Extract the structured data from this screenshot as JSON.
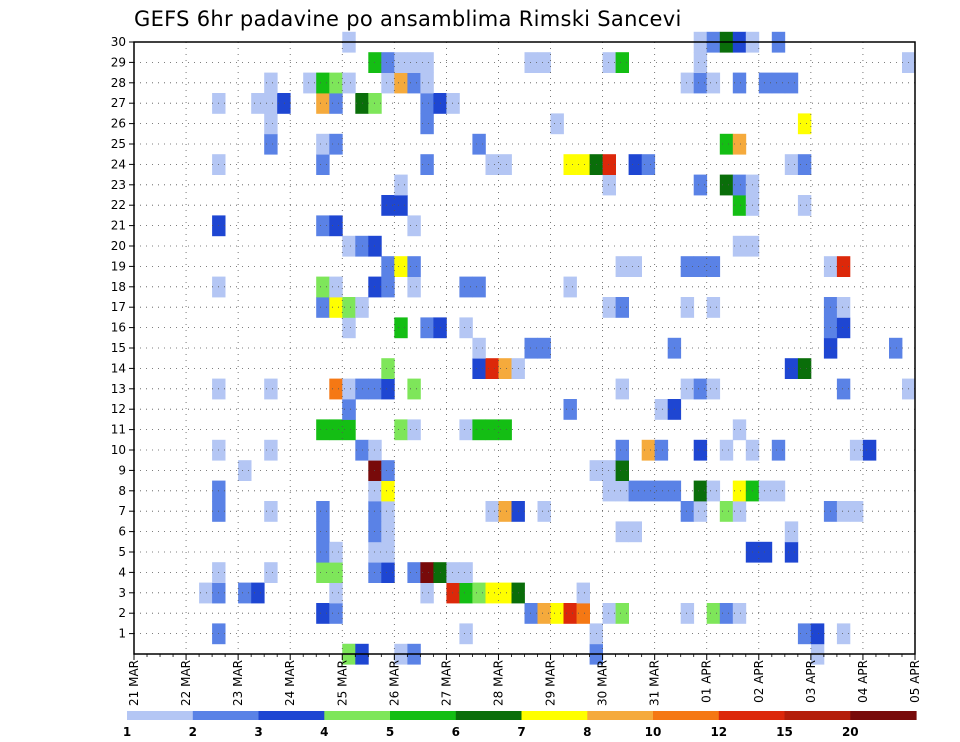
{
  "chart_data": {
    "type": "heatmap",
    "title": "GEFS 6hr padavine po ansamblima Rimski Sancevi",
    "xlabel": "",
    "ylabel": "",
    "grid": true,
    "x_tick_labels": [
      "21 MAR",
      "22 MAR",
      "23 MAR",
      "24 MAR",
      "25 MAR",
      "26 MAR",
      "27 MAR",
      "28 MAR",
      "29 MAR",
      "30 MAR",
      "31 MAR",
      "01 APR",
      "02 APR",
      "03 APR",
      "04 APR",
      "05 APR"
    ],
    "y_tick_labels": [
      "1",
      "2",
      "3",
      "4",
      "5",
      "6",
      "7",
      "8",
      "9",
      "10",
      "11",
      "12",
      "13",
      "14",
      "15",
      "16",
      "17",
      "18",
      "19",
      "20",
      "21",
      "22",
      "23",
      "24",
      "25",
      "26",
      "27",
      "28",
      "29",
      "30"
    ],
    "x_range_steps": [
      0,
      60
    ],
    "y_range_members": [
      0,
      30
    ],
    "legend": {
      "placement": "bottom",
      "tick_labels": [
        "1",
        "2",
        "3",
        "4",
        "5",
        "6",
        "7",
        "8",
        "10",
        "12",
        "15",
        "20"
      ],
      "colors": [
        "#b4c6f4",
        "#5a82e6",
        "#1e46d2",
        "#7ee65a",
        "#14be14",
        "#0a6e0a",
        "#ffff00",
        "#f5aa3c",
        "#f57814",
        "#dc280a",
        "#b41e0a",
        "#780a0a"
      ]
    },
    "colors": [
      "#b4c6f4",
      "#5a82e6",
      "#1e46d2",
      "#7ee65a",
      "#14be14",
      "#0a6e0a",
      "#ffff00",
      "#f5aa3c",
      "#f57814",
      "#dc280a",
      "#b41e0a",
      "#780a0a"
    ],
    "cells_format": "[step (6h steps after 21 MAR 00Z), ensemble member, color level index (0 = 1-2 mm ... 11 = >20 mm)]",
    "cells": [
      [
        16,
        0,
        0
      ],
      [
        16,
        0,
        3
      ],
      [
        17,
        0,
        2
      ],
      [
        20,
        0,
        0
      ],
      [
        21,
        0,
        1
      ],
      [
        35,
        0,
        1
      ],
      [
        52,
        0,
        0
      ],
      [
        6,
        1,
        1
      ],
      [
        25,
        1,
        0
      ],
      [
        35,
        1,
        0
      ],
      [
        51,
        1,
        1
      ],
      [
        52,
        1,
        2
      ],
      [
        54,
        1,
        0
      ],
      [
        14,
        2,
        2
      ],
      [
        15,
        2,
        1
      ],
      [
        30,
        2,
        1
      ],
      [
        31,
        2,
        7
      ],
      [
        32,
        2,
        6
      ],
      [
        33,
        2,
        9
      ],
      [
        34,
        2,
        8
      ],
      [
        36,
        2,
        0
      ],
      [
        37,
        2,
        3
      ],
      [
        42,
        2,
        0
      ],
      [
        44,
        2,
        3
      ],
      [
        45,
        2,
        1
      ],
      [
        46,
        2,
        0
      ],
      [
        5,
        3,
        0
      ],
      [
        6,
        3,
        0
      ],
      [
        6,
        3,
        1
      ],
      [
        8,
        3,
        1
      ],
      [
        9,
        3,
        2
      ],
      [
        15,
        3,
        0
      ],
      [
        22,
        3,
        0
      ],
      [
        24,
        3,
        9
      ],
      [
        25,
        3,
        4
      ],
      [
        26,
        3,
        3
      ],
      [
        27,
        3,
        6
      ],
      [
        28,
        3,
        6
      ],
      [
        29,
        3,
        5
      ],
      [
        34,
        3,
        0
      ],
      [
        6,
        4,
        0
      ],
      [
        10,
        4,
        0
      ],
      [
        14,
        4,
        3
      ],
      [
        15,
        4,
        3
      ],
      [
        18,
        4,
        1
      ],
      [
        19,
        4,
        2
      ],
      [
        21,
        4,
        1
      ],
      [
        22,
        4,
        11
      ],
      [
        23,
        4,
        5
      ],
      [
        24,
        4,
        0
      ],
      [
        25,
        4,
        0
      ],
      [
        14,
        5,
        1
      ],
      [
        15,
        5,
        0
      ],
      [
        18,
        5,
        0
      ],
      [
        19,
        5,
        0
      ],
      [
        47,
        5,
        2
      ],
      [
        48,
        5,
        2
      ],
      [
        50,
        5,
        2
      ],
      [
        14,
        6,
        1
      ],
      [
        18,
        6,
        1
      ],
      [
        19,
        6,
        0
      ],
      [
        37,
        6,
        0
      ],
      [
        38,
        6,
        0
      ],
      [
        50,
        6,
        0
      ],
      [
        6,
        7,
        1
      ],
      [
        10,
        7,
        0
      ],
      [
        14,
        7,
        1
      ],
      [
        18,
        7,
        1
      ],
      [
        19,
        7,
        0
      ],
      [
        27,
        7,
        0
      ],
      [
        28,
        7,
        7
      ],
      [
        29,
        7,
        2
      ],
      [
        31,
        7,
        0
      ],
      [
        42,
        7,
        1
      ],
      [
        43,
        7,
        0
      ],
      [
        45,
        7,
        3
      ],
      [
        46,
        7,
        0
      ],
      [
        53,
        7,
        1
      ],
      [
        54,
        7,
        0
      ],
      [
        55,
        7,
        0
      ],
      [
        6,
        8,
        1
      ],
      [
        18,
        8,
        0
      ],
      [
        19,
        8,
        6
      ],
      [
        36,
        8,
        0
      ],
      [
        37,
        8,
        0
      ],
      [
        38,
        8,
        1
      ],
      [
        39,
        8,
        1
      ],
      [
        40,
        8,
        1
      ],
      [
        41,
        8,
        1
      ],
      [
        43,
        8,
        5
      ],
      [
        44,
        8,
        0
      ],
      [
        46,
        8,
        6
      ],
      [
        47,
        8,
        4
      ],
      [
        48,
        8,
        0
      ],
      [
        49,
        8,
        0
      ],
      [
        8,
        9,
        0
      ],
      [
        18,
        9,
        11
      ],
      [
        19,
        9,
        1
      ],
      [
        35,
        9,
        0
      ],
      [
        36,
        9,
        0
      ],
      [
        37,
        9,
        5
      ],
      [
        6,
        10,
        0
      ],
      [
        10,
        10,
        0
      ],
      [
        17,
        10,
        1
      ],
      [
        18,
        10,
        0
      ],
      [
        37,
        10,
        1
      ],
      [
        39,
        10,
        7
      ],
      [
        40,
        10,
        1
      ],
      [
        43,
        10,
        2
      ],
      [
        45,
        10,
        0
      ],
      [
        47,
        10,
        0
      ],
      [
        49,
        10,
        1
      ],
      [
        55,
        10,
        0
      ],
      [
        56,
        10,
        2
      ],
      [
        14,
        11,
        4
      ],
      [
        15,
        11,
        4
      ],
      [
        16,
        11,
        4
      ],
      [
        20,
        11,
        3
      ],
      [
        21,
        11,
        0
      ],
      [
        25,
        11,
        0
      ],
      [
        26,
        11,
        4
      ],
      [
        27,
        11,
        4
      ],
      [
        28,
        11,
        4
      ],
      [
        46,
        11,
        0
      ],
      [
        16,
        12,
        1
      ],
      [
        16,
        12,
        1
      ],
      [
        40,
        12,
        0
      ],
      [
        41,
        12,
        2
      ],
      [
        33,
        12,
        1
      ],
      [
        6,
        13,
        0
      ],
      [
        10,
        13,
        0
      ],
      [
        15,
        13,
        8
      ],
      [
        16,
        13,
        0
      ],
      [
        17,
        13,
        1
      ],
      [
        18,
        13,
        1
      ],
      [
        19,
        13,
        2
      ],
      [
        21,
        13,
        3
      ],
      [
        37,
        13,
        0
      ],
      [
        42,
        13,
        0
      ],
      [
        43,
        13,
        1
      ],
      [
        44,
        13,
        0
      ],
      [
        54,
        13,
        1
      ],
      [
        59,
        13,
        0
      ],
      [
        19,
        14,
        3
      ],
      [
        26,
        14,
        2
      ],
      [
        27,
        14,
        9
      ],
      [
        28,
        14,
        7
      ],
      [
        29,
        14,
        0
      ],
      [
        50,
        14,
        2
      ],
      [
        51,
        14,
        5
      ],
      [
        26,
        15,
        0
      ],
      [
        30,
        15,
        1
      ],
      [
        31,
        15,
        1
      ],
      [
        41,
        15,
        1
      ],
      [
        53,
        15,
        2
      ],
      [
        58,
        15,
        1
      ],
      [
        16,
        16,
        0
      ],
      [
        20,
        16,
        4
      ],
      [
        22,
        16,
        1
      ],
      [
        23,
        16,
        2
      ],
      [
        25,
        16,
        0
      ],
      [
        53,
        16,
        1
      ],
      [
        54,
        16,
        2
      ],
      [
        14,
        17,
        1
      ],
      [
        15,
        17,
        6
      ],
      [
        16,
        17,
        3
      ],
      [
        17,
        17,
        0
      ],
      [
        36,
        17,
        0
      ],
      [
        37,
        17,
        1
      ],
      [
        42,
        17,
        0
      ],
      [
        44,
        17,
        0
      ],
      [
        53,
        17,
        1
      ],
      [
        54,
        17,
        0
      ],
      [
        6,
        18,
        0
      ],
      [
        14,
        18,
        3
      ],
      [
        15,
        18,
        0
      ],
      [
        18,
        18,
        2
      ],
      [
        19,
        18,
        1
      ],
      [
        21,
        18,
        0
      ],
      [
        25,
        18,
        1
      ],
      [
        26,
        18,
        1
      ],
      [
        33,
        18,
        0
      ],
      [
        19,
        19,
        1
      ],
      [
        20,
        19,
        6
      ],
      [
        21,
        19,
        1
      ],
      [
        37,
        19,
        0
      ],
      [
        38,
        19,
        0
      ],
      [
        42,
        19,
        1
      ],
      [
        43,
        19,
        1
      ],
      [
        44,
        19,
        1
      ],
      [
        53,
        19,
        0
      ],
      [
        54,
        19,
        9
      ],
      [
        16,
        20,
        0
      ],
      [
        17,
        20,
        1
      ],
      [
        18,
        20,
        2
      ],
      [
        46,
        20,
        0
      ],
      [
        47,
        20,
        0
      ],
      [
        6,
        21,
        2
      ],
      [
        14,
        21,
        1
      ],
      [
        15,
        21,
        2
      ],
      [
        21,
        21,
        0
      ],
      [
        19,
        22,
        2
      ],
      [
        20,
        22,
        2
      ],
      [
        46,
        22,
        4
      ],
      [
        47,
        22,
        0
      ],
      [
        51,
        22,
        0
      ],
      [
        20,
        23,
        0
      ],
      [
        36,
        23,
        0
      ],
      [
        43,
        23,
        1
      ],
      [
        45,
        23,
        5
      ],
      [
        46,
        23,
        1
      ],
      [
        47,
        23,
        0
      ],
      [
        6,
        24,
        0
      ],
      [
        14,
        24,
        1
      ],
      [
        22,
        24,
        1
      ],
      [
        27,
        24,
        0
      ],
      [
        28,
        24,
        0
      ],
      [
        33,
        24,
        6
      ],
      [
        34,
        24,
        6
      ],
      [
        35,
        24,
        5
      ],
      [
        36,
        24,
        9
      ],
      [
        38,
        24,
        2
      ],
      [
        39,
        24,
        1
      ],
      [
        50,
        24,
        0
      ],
      [
        51,
        24,
        1
      ],
      [
        10,
        25,
        1
      ],
      [
        14,
        25,
        0
      ],
      [
        15,
        25,
        1
      ],
      [
        26,
        25,
        1
      ],
      [
        45,
        25,
        4
      ],
      [
        46,
        25,
        7
      ],
      [
        10,
        26,
        0
      ],
      [
        32,
        26,
        0
      ],
      [
        22,
        26,
        1
      ],
      [
        51,
        26,
        6
      ],
      [
        6,
        27,
        0
      ],
      [
        9,
        27,
        0
      ],
      [
        10,
        27,
        0
      ],
      [
        11,
        27,
        2
      ],
      [
        14,
        27,
        7
      ],
      [
        15,
        27,
        1
      ],
      [
        17,
        27,
        5
      ],
      [
        18,
        27,
        3
      ],
      [
        22,
        27,
        1
      ],
      [
        23,
        27,
        2
      ],
      [
        24,
        27,
        0
      ],
      [
        10,
        28,
        0
      ],
      [
        13,
        28,
        0
      ],
      [
        14,
        28,
        4
      ],
      [
        15,
        28,
        3
      ],
      [
        16,
        28,
        0
      ],
      [
        19,
        28,
        0
      ],
      [
        20,
        28,
        7
      ],
      [
        21,
        28,
        1
      ],
      [
        22,
        28,
        0
      ],
      [
        42,
        28,
        0
      ],
      [
        43,
        28,
        1
      ],
      [
        44,
        28,
        0
      ],
      [
        46,
        28,
        1
      ],
      [
        48,
        28,
        1
      ],
      [
        49,
        28,
        1
      ],
      [
        50,
        28,
        1
      ],
      [
        18,
        29,
        4
      ],
      [
        19,
        29,
        1
      ],
      [
        20,
        29,
        0
      ],
      [
        21,
        29,
        0
      ],
      [
        22,
        29,
        0
      ],
      [
        30,
        29,
        0
      ],
      [
        31,
        29,
        0
      ],
      [
        36,
        29,
        0
      ],
      [
        37,
        29,
        4
      ],
      [
        43,
        29,
        0
      ],
      [
        59,
        29,
        0
      ],
      [
        16,
        30,
        0
      ],
      [
        43,
        30,
        0
      ],
      [
        44,
        30,
        1
      ],
      [
        45,
        30,
        5
      ],
      [
        46,
        30,
        2
      ],
      [
        47,
        30,
        0
      ],
      [
        49,
        30,
        1
      ]
    ]
  }
}
